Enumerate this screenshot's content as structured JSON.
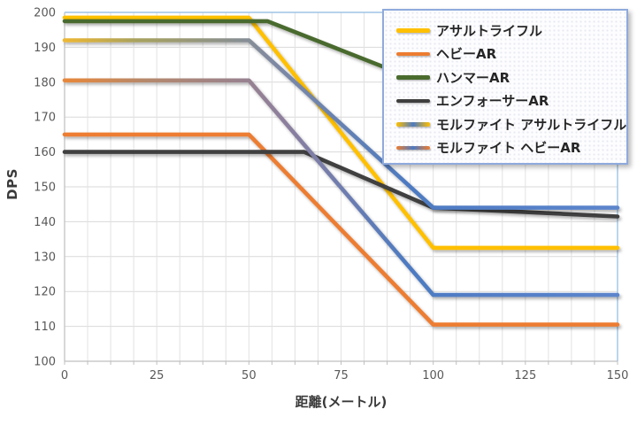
{
  "chart_data": {
    "type": "line",
    "title": "",
    "xlabel": "距離(メートル)",
    "ylabel": "DPS",
    "xlim": [
      0,
      150
    ],
    "ylim": [
      100,
      200
    ],
    "xticks": [
      0,
      25,
      50,
      75,
      100,
      125,
      150
    ],
    "yticks": [
      100,
      110,
      120,
      130,
      140,
      150,
      160,
      170,
      180,
      190,
      200
    ],
    "x_minor_step": 6.25,
    "grid": true,
    "legend_position": "top-right",
    "series": [
      {
        "name": "アサルトライフル",
        "color": "#FFC000",
        "points": [
          [
            0,
            198.5
          ],
          [
            50,
            198.5
          ],
          [
            100,
            132.5
          ],
          [
            150,
            132.5
          ]
        ]
      },
      {
        "name": "ヘビーAR",
        "color": "#ED7D31",
        "points": [
          [
            0,
            165
          ],
          [
            50,
            165
          ],
          [
            100,
            110.5
          ],
          [
            150,
            110.5
          ]
        ]
      },
      {
        "name": "ハンマーAR",
        "color": "#4A6B2E",
        "points": [
          [
            0,
            197.5
          ],
          [
            55,
            197.5
          ],
          [
            150,
            158
          ]
        ]
      },
      {
        "name": "エンフォーサーAR",
        "color": "#3F3F3F",
        "points": [
          [
            0,
            160
          ],
          [
            65,
            160
          ],
          [
            100,
            144
          ],
          [
            150,
            141.5
          ]
        ]
      },
      {
        "name": "モルファイト アサルトライフル",
        "color": "#FFC000",
        "gradient_end": "#4D7AC2",
        "gradient_stops": [
          [
            0,
            "#EDB733"
          ],
          [
            0.13,
            "#A8A25E"
          ],
          [
            0.38,
            "#7E89A4"
          ],
          [
            0.62,
            "#4D7AC2"
          ],
          [
            1,
            "#5C85CC"
          ]
        ],
        "points": [
          [
            0,
            192
          ],
          [
            50,
            192
          ],
          [
            100,
            144
          ],
          [
            150,
            144
          ]
        ]
      },
      {
        "name": "モルファイト ヘビーAR",
        "color": "#ED7D31",
        "gradient_end": "#4D7AC2",
        "gradient_stops": [
          [
            0,
            "#E8873A"
          ],
          [
            0.15,
            "#B5886C"
          ],
          [
            0.4,
            "#8C7F9E"
          ],
          [
            0.62,
            "#4D7AC2"
          ],
          [
            1,
            "#5C85CC"
          ]
        ],
        "points": [
          [
            0,
            180.5
          ],
          [
            50,
            180.5
          ],
          [
            100,
            119
          ],
          [
            150,
            119
          ]
        ]
      }
    ]
  },
  "colors": {
    "grid_h": "#D9D9D9",
    "grid_v": "#E2E2E2",
    "axis": "#BFBFBF",
    "plot_border": "#9DC3E6",
    "tick_label": "#595959",
    "axis_title": "#3A3A3A",
    "legend_border": "#8FAADC",
    "legend_text": "#262626"
  }
}
